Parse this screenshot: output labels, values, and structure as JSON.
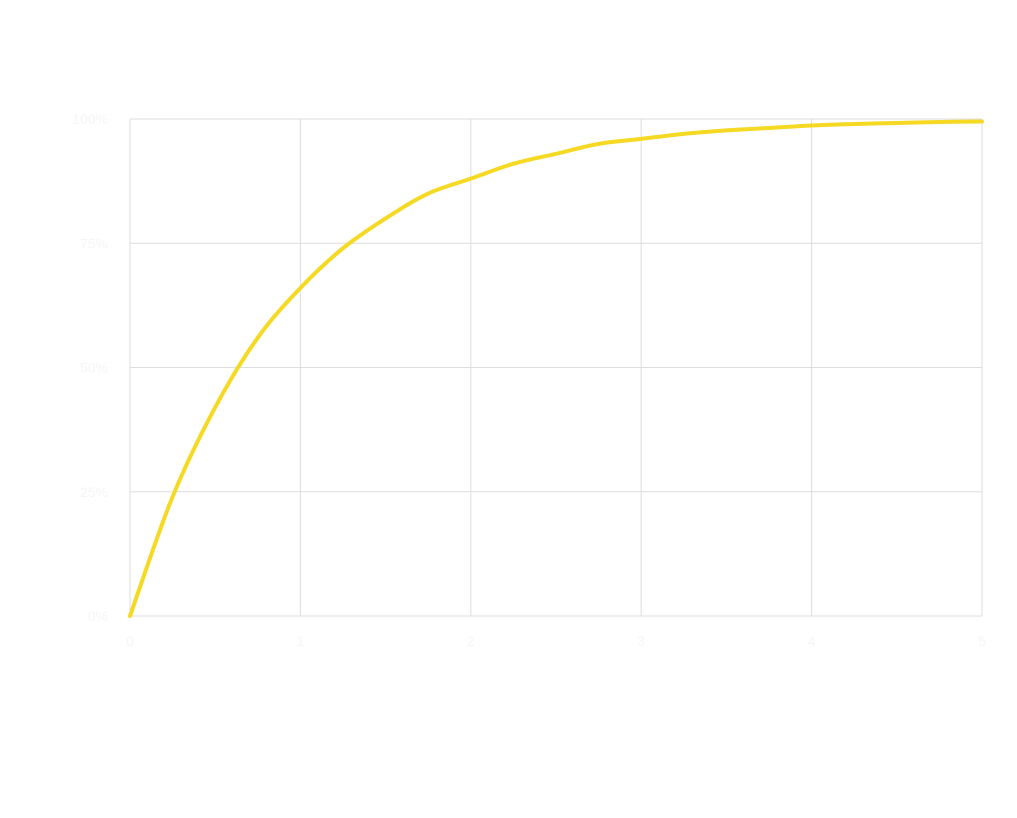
{
  "chart_data": {
    "type": "line",
    "title": "",
    "xlabel": "",
    "ylabel": "",
    "caption": "",
    "x_ticks": [
      "0",
      "1",
      "2",
      "3",
      "4",
      "5"
    ],
    "y_ticks": [
      "0%",
      "25%",
      "50%",
      "75%",
      "100%"
    ],
    "xlim": [
      0,
      5
    ],
    "ylim": [
      0,
      1
    ],
    "grid": true,
    "series": [
      {
        "color": "#f5d922",
        "x": [
          0,
          0.25,
          0.5,
          0.75,
          1,
          1.25,
          1.5,
          1.75,
          2,
          2.25,
          2.5,
          2.75,
          3,
          3.25,
          3.5,
          3.75,
          4,
          4.25,
          4.5,
          4.75,
          5
        ],
        "y": [
          0.0,
          0.24,
          0.42,
          0.56,
          0.66,
          0.74,
          0.8,
          0.85,
          0.88,
          0.91,
          0.93,
          0.95,
          0.96,
          0.97,
          0.977,
          0.982,
          0.987,
          0.99,
          0.992,
          0.994,
          0.995
        ]
      }
    ]
  }
}
